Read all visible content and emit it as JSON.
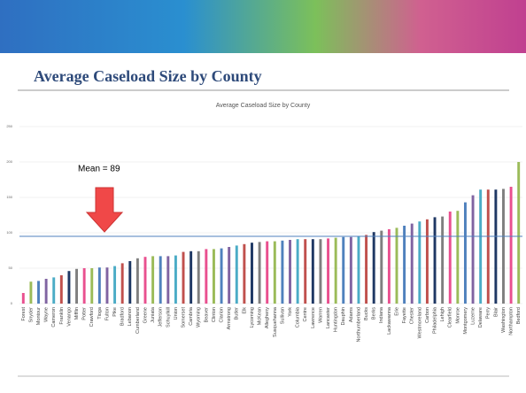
{
  "slide_title": "Average Caseload Size by County",
  "chart_data": {
    "type": "bar",
    "title": "Average Caseload Size by County",
    "categories": [
      "Forest",
      "Snyder",
      "Montour",
      "Wayne",
      "Cameron",
      "Franklin",
      "Venango",
      "Mifflin",
      "Potter",
      "Crawford",
      "Tioga",
      "Fulton",
      "Pike",
      "Bradford",
      "Lebanon",
      "Cumberland",
      "Greene",
      "Juniata",
      "Jefferson",
      "Schuylkill",
      "Union",
      "Somerset",
      "Cambria",
      "Wyoming",
      "Beaver",
      "Clinton",
      "Clarion",
      "Armstrong",
      "Butler",
      "Elk",
      "Lycoming",
      "McKean",
      "Allegheny",
      "Susquehanna",
      "Sullivan",
      "York",
      "Columbia",
      "Centre",
      "Lawrence",
      "Warren",
      "Lancaster",
      "Huntingdon",
      "Dauphin",
      "Adams",
      "Northumberland",
      "Bucks",
      "Berks",
      "Indiana",
      "Lackawanna",
      "Erie",
      "Fayette",
      "Chester",
      "Westmoreland",
      "Carbon",
      "Philadelphia",
      "Lehigh",
      "Clearfield",
      "Monroe",
      "Montgomery",
      "Luzerne",
      "Delaware",
      "Perry",
      "Blair",
      "Washington",
      "Northampton",
      "Bedford"
    ],
    "values": [
      15,
      31,
      32,
      35,
      37,
      40,
      46,
      49,
      50,
      50,
      51,
      51,
      53,
      57,
      60,
      64,
      66,
      67,
      67,
      67,
      68,
      73,
      74,
      74,
      77,
      77,
      78,
      80,
      82,
      84,
      86,
      87,
      88,
      88,
      89,
      90,
      91,
      91,
      91,
      91,
      92,
      93,
      94,
      94,
      95,
      97,
      101,
      103,
      105,
      107,
      110,
      113,
      116,
      119,
      122,
      123,
      130,
      131,
      143,
      153,
      161,
      161,
      161,
      162,
      165,
      200
    ],
    "palette": [
      "#e9508f",
      "#9bbb59",
      "#4f81bd",
      "#8064a2",
      "#4bacc6",
      "#c0504d",
      "#1f3864",
      "#7f7f7f"
    ],
    "ylim": [
      0,
      250
    ],
    "yticks": [
      0,
      50,
      100,
      150,
      200,
      250
    ],
    "grid": true,
    "reference_line": {
      "value": 95,
      "color": "#4f81bd"
    },
    "annotation": "Mean = 89"
  }
}
